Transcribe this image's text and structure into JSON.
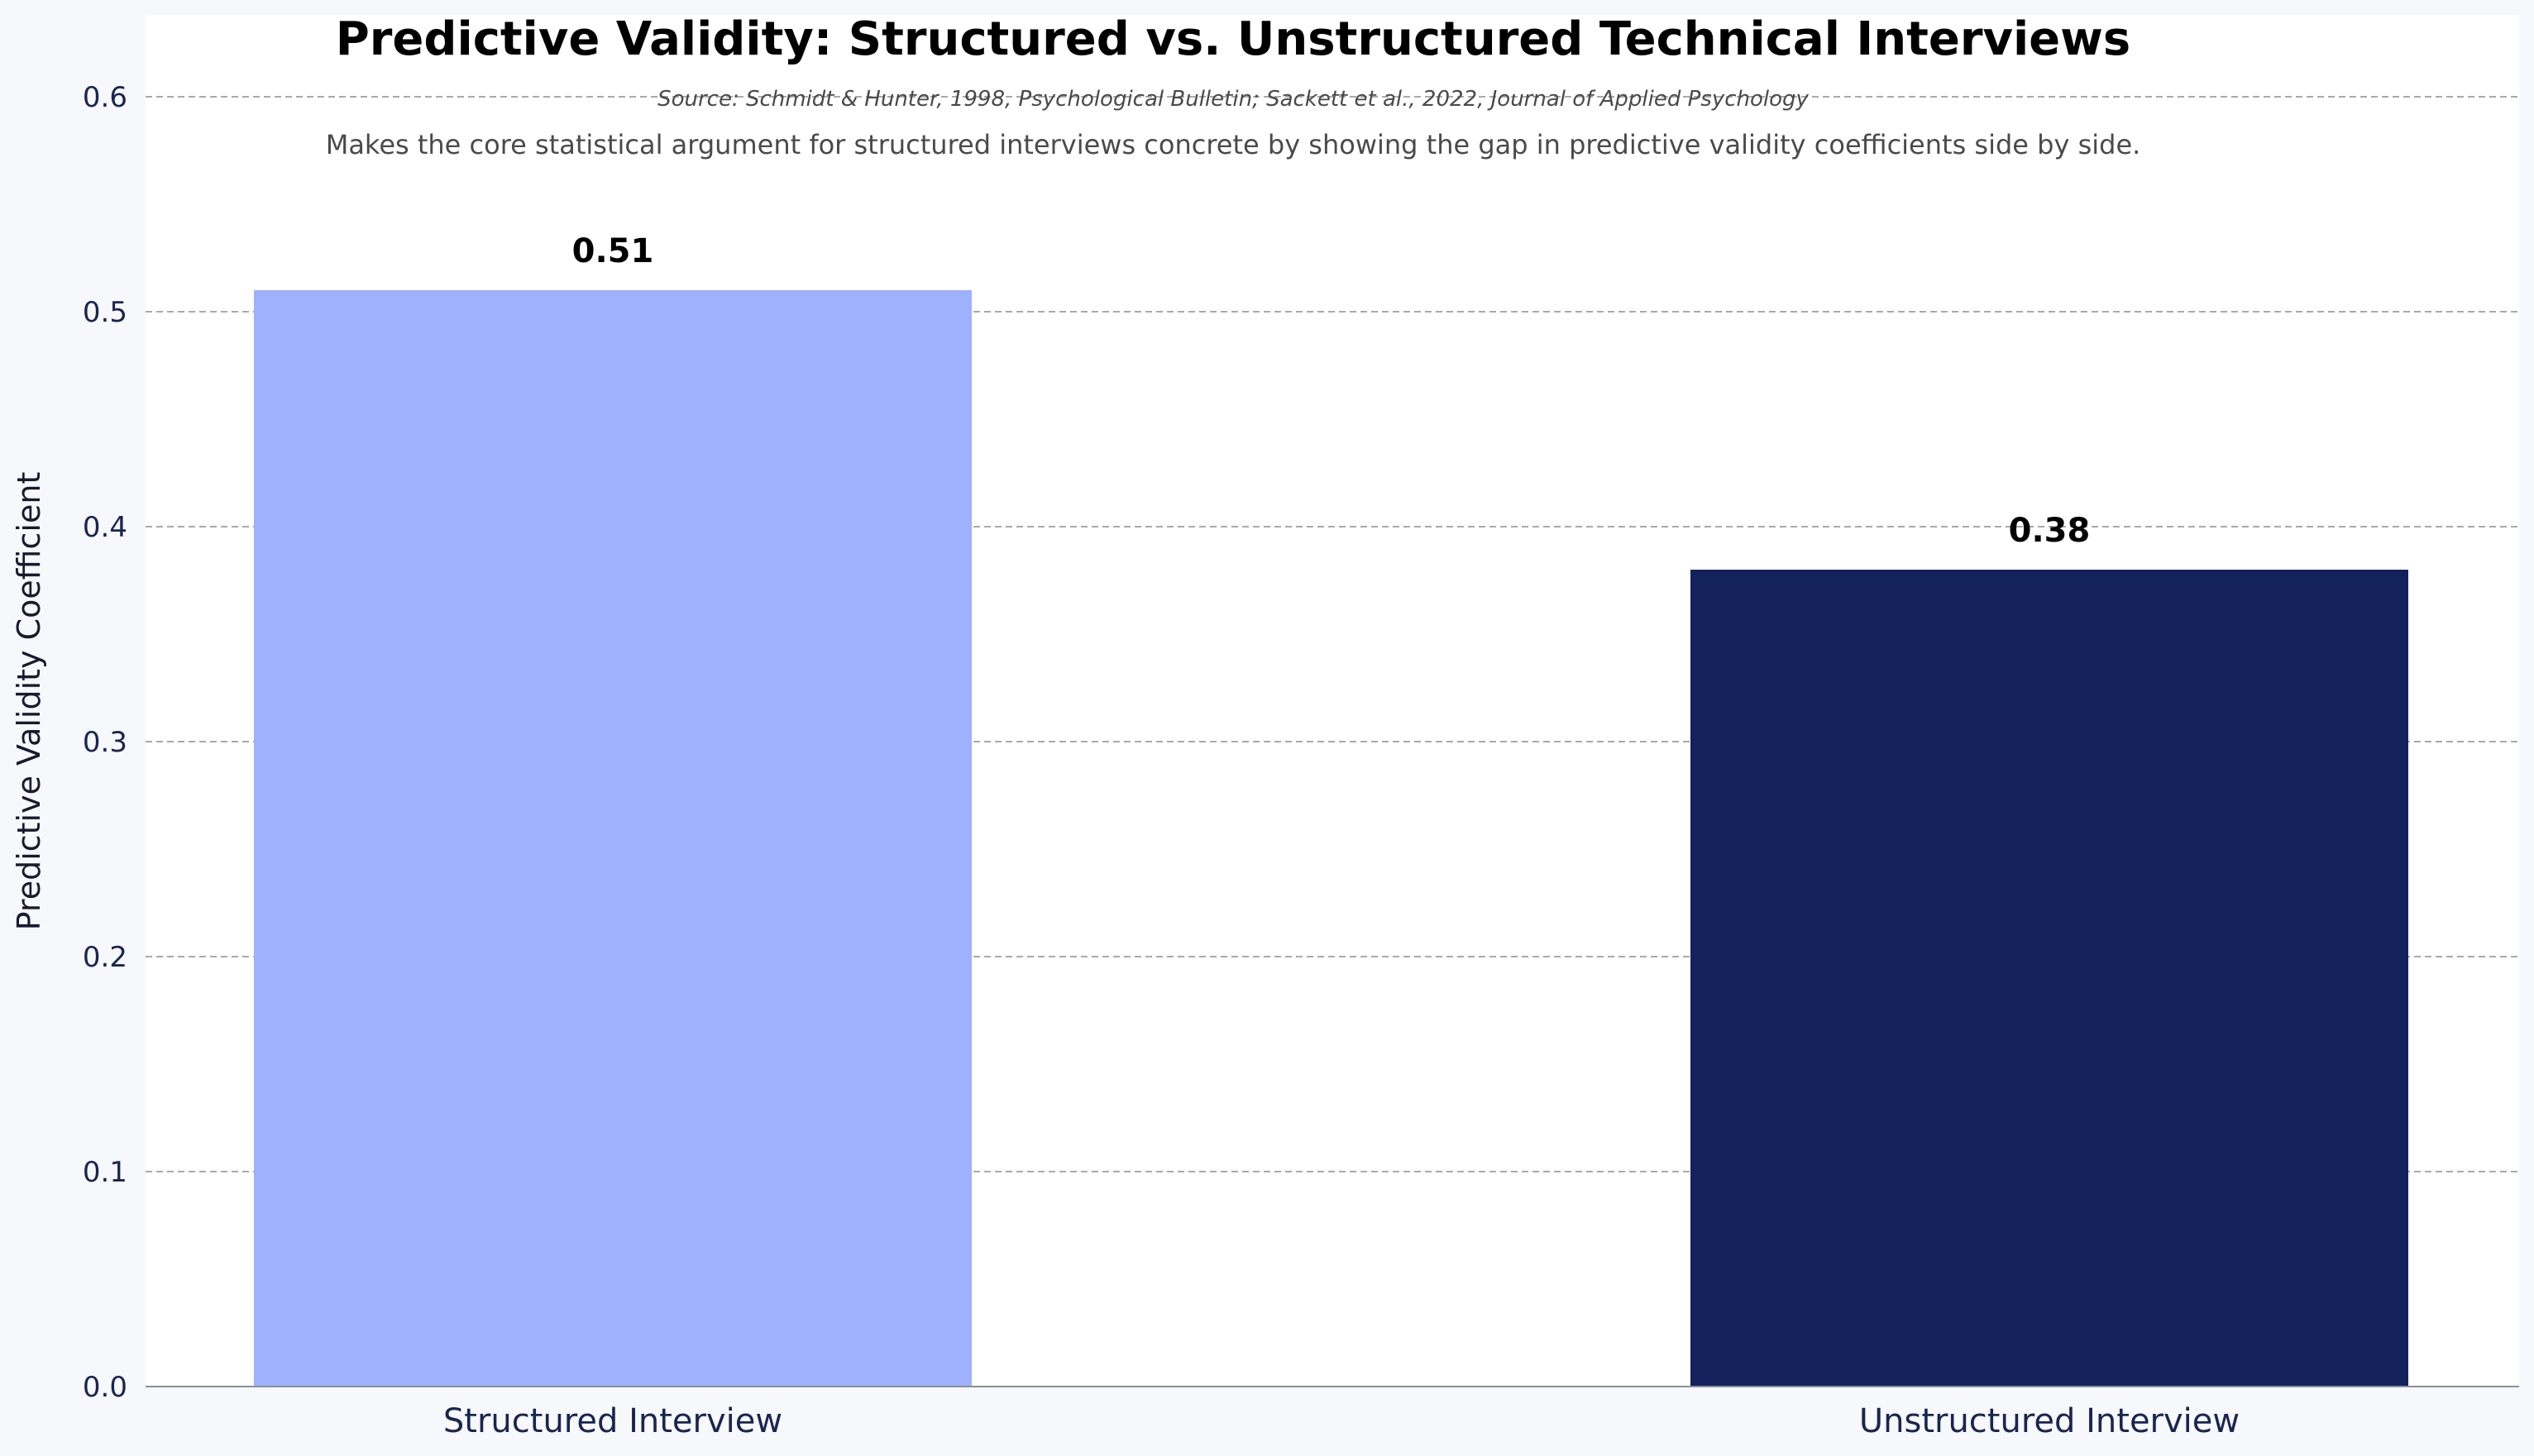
{
  "chart_data": {
    "type": "bar",
    "title": "Predictive Validity: Structured vs. Unstructured Technical Interviews",
    "source": "Source: Schmidt & Hunter, 1998, Psychological Bulletin; Sackett et al., 2022, Journal of Applied Psychology",
    "subtitle": "Makes the core statistical argument for structured interviews concrete by showing the gap in predictive validity coefficients side by side.",
    "xlabel": "",
    "ylabel": "Predictive Validity Coefficient",
    "categories": [
      "Structured Interview",
      "Unstructured Interview"
    ],
    "values": [
      0.51,
      0.38
    ],
    "value_labels": [
      "0.51",
      "0.38"
    ],
    "bar_colors": [
      "#9fb0fc",
      "#14225c"
    ],
    "ylim": [
      0,
      0.64
    ],
    "yticks": [
      0.0,
      0.1,
      0.2,
      0.3,
      0.4,
      0.5,
      0.6
    ],
    "ytick_labels": [
      "0.0",
      "0.1",
      "0.2",
      "0.3",
      "0.4",
      "0.5",
      "0.6"
    ],
    "grid": "horizontal dashed",
    "legend": "none"
  }
}
